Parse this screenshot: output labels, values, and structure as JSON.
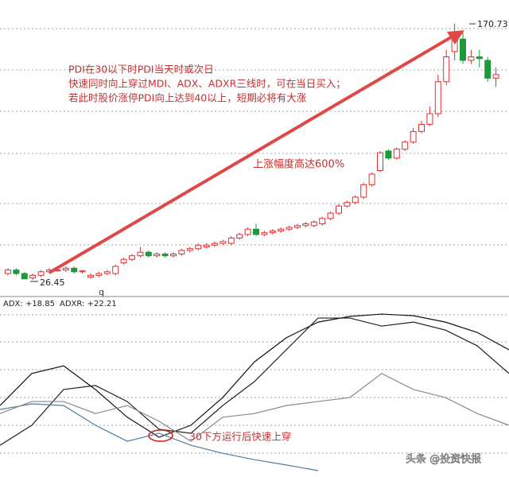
{
  "chart_data": {
    "type": "candlestick",
    "annotations": [
      "PDI在30以下时PDI当天时或次日",
      "快速同时向上穿过MDI、ADX、ADXR三线时，可在当日买入；",
      "若此时股价涨停PDI向上达到40以上，短期必将有大涨"
    ],
    "rise_note": "上涨幅度高达600%",
    "cross_note": "30下方运行后快速上穿",
    "axis_mark": "q",
    "watermark": "头条 @投资快报",
    "high_label": 170.73,
    "low_label": 26.45,
    "ylim": [
      17.5,
      184
    ],
    "up_color": "#e03030",
    "down_color": "#1a9a3a",
    "candles": [
      [
        30,
        32,
        33,
        29
      ],
      [
        32,
        30,
        33,
        29
      ],
      [
        30,
        27,
        31,
        27
      ],
      [
        27.5,
        29,
        30,
        26.45
      ],
      [
        29,
        31,
        32,
        28
      ],
      [
        31,
        32,
        33,
        30
      ],
      [
        31.5,
        32,
        33,
        31
      ],
      [
        32,
        33,
        34,
        31
      ],
      [
        33,
        31,
        34,
        30
      ],
      [
        31,
        31.5,
        32,
        30
      ],
      [
        28,
        29,
        30,
        27
      ],
      [
        29,
        30,
        31,
        28
      ],
      [
        30,
        31,
        32,
        29
      ],
      [
        30,
        34,
        35,
        29
      ],
      [
        36,
        38,
        39,
        35
      ],
      [
        38,
        40,
        41,
        37
      ],
      [
        40,
        42,
        45,
        39
      ],
      [
        42,
        40,
        43,
        39
      ],
      [
        40,
        41,
        42,
        39
      ],
      [
        41,
        40,
        42,
        39
      ],
      [
        40,
        41,
        42,
        39
      ],
      [
        41,
        43,
        44,
        40
      ],
      [
        43,
        44,
        45,
        42
      ],
      [
        44,
        46,
        47,
        43
      ],
      [
        45,
        46,
        47,
        44
      ],
      [
        46,
        47,
        48,
        45
      ],
      [
        47,
        48,
        49,
        46
      ],
      [
        47,
        50,
        51,
        46
      ],
      [
        50,
        52,
        53,
        49
      ],
      [
        52,
        55,
        56,
        51
      ],
      [
        55,
        52,
        58,
        51
      ],
      [
        52,
        53,
        54,
        51
      ],
      [
        53,
        54,
        55,
        52
      ],
      [
        54,
        55,
        56,
        53
      ],
      [
        55,
        56,
        57,
        54
      ],
      [
        56,
        57,
        58,
        55
      ],
      [
        57,
        58,
        59,
        56
      ],
      [
        57,
        59,
        60,
        56
      ],
      [
        58,
        61,
        62,
        57
      ],
      [
        61,
        64,
        65,
        60
      ],
      [
        64,
        68,
        69,
        63
      ],
      [
        68,
        70,
        71,
        67
      ],
      [
        70,
        73,
        74,
        69
      ],
      [
        73,
        80,
        81,
        72
      ],
      [
        80,
        86,
        87,
        79
      ],
      [
        88,
        98,
        99,
        87
      ],
      [
        99,
        95,
        100,
        94
      ],
      [
        95,
        100,
        101,
        94
      ],
      [
        100,
        104,
        105,
        99
      ],
      [
        104,
        110,
        112,
        103
      ],
      [
        110,
        114,
        116,
        109
      ],
      [
        114,
        120,
        124,
        113
      ],
      [
        120,
        138,
        142,
        118
      ],
      [
        138,
        152,
        156,
        136
      ],
      [
        155,
        165,
        170.73,
        150
      ],
      [
        162,
        150,
        166,
        148
      ],
      [
        150,
        152,
        156,
        148
      ],
      [
        152,
        151,
        156,
        146
      ],
      [
        150,
        140,
        152,
        138
      ],
      [
        140,
        142,
        146,
        135
      ]
    ],
    "indicator": {
      "legend": [
        "ADX: +18.85",
        "ADXR: +22.21"
      ],
      "ylim": [
        0,
        50
      ],
      "x": [
        0,
        40,
        80,
        120,
        160,
        200,
        240,
        280,
        320,
        360,
        400,
        440,
        480,
        520,
        560,
        600,
        640
      ],
      "series": [
        {
          "color": "#111111",
          "values": [
            21.4,
            31.0,
            33.3,
            26.2,
            17.9,
            11.9,
            15.5,
            23.8,
            34.5,
            41.7,
            46.4,
            48.1,
            48.8,
            48.3,
            46.4,
            43.3,
            38.1
          ]
        },
        {
          "color": "#222222",
          "values": [
            9.5,
            15.5,
            26.2,
            27.4,
            22.6,
            14.3,
            13.1,
            21.4,
            28.6,
            38.1,
            47.6,
            47.6,
            45.2,
            46.4,
            44.0,
            39.3,
            31.0
          ]
        },
        {
          "color": "#4a7fa0",
          "values": [
            20.2,
            21.9,
            21.4,
            15.5,
            10.7,
            13.1,
            9.5,
            7.1,
            5.2,
            3.6,
            1.9,
            null,
            null,
            null,
            null,
            null,
            null
          ]
        },
        {
          "color": "#8a8a8a",
          "values": [
            19.0,
            22.6,
            22.6,
            19.0,
            21.4,
            16.7,
            10.7,
            17.9,
            19.0,
            21.4,
            22.6,
            23.8,
            31.0,
            26.2,
            23.8,
            19.0,
            15.5
          ]
        }
      ]
    }
  }
}
